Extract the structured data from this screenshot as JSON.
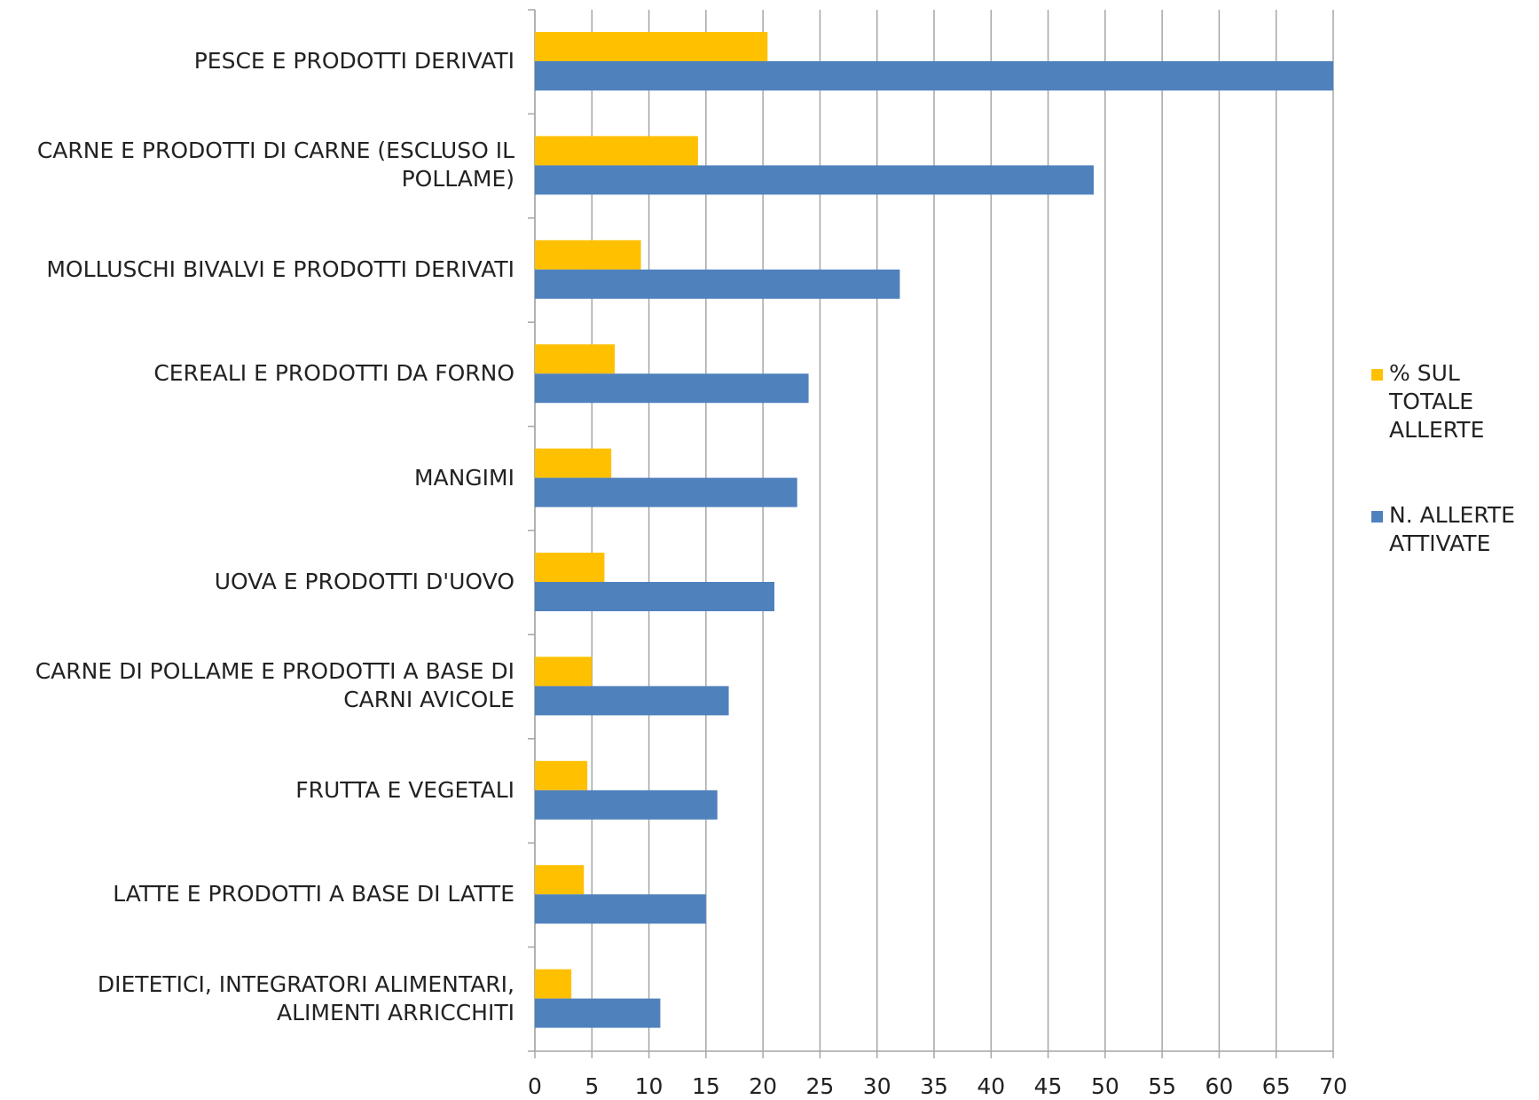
{
  "chart_data": {
    "type": "hbar",
    "categories": [
      "PESCE E PRODOTTI DERIVATI",
      "CARNE E PRODOTTI DI CARNE (ESCLUSO IL POLLAME)",
      "MOLLUSCHI BIVALVI E PRODOTTI DERIVATI",
      "CEREALI E PRODOTTI DA FORNO",
      "MANGIMI",
      "UOVA E PRODOTTI D'UOVO",
      "CARNE DI POLLAME E PRODOTTI A BASE DI CARNI AVICOLE",
      "FRUTTA E VEGETALI",
      "LATTE E PRODOTTI A BASE DI LATTE",
      "DIETETICI, INTEGRATORI ALIMENTARI, ALIMENTI ARRICCHITI"
    ],
    "series": [
      {
        "name": "% SUL TOTALE ALLERTE",
        "color": "#ffc000",
        "values": [
          20.4,
          14.3,
          9.3,
          7.0,
          6.7,
          6.1,
          5.0,
          4.6,
          4.3,
          3.2
        ]
      },
      {
        "name": "N. ALLERTE ATTIVATE",
        "color": "#4f81bd",
        "values": [
          70,
          49,
          32,
          24,
          23,
          21,
          17,
          16,
          15,
          11
        ]
      }
    ],
    "xlim": [
      0,
      70
    ],
    "xticks": [
      0,
      5,
      10,
      15,
      20,
      25,
      30,
      35,
      40,
      45,
      50,
      55,
      60,
      65,
      70
    ],
    "grid": true,
    "legend": "right"
  }
}
